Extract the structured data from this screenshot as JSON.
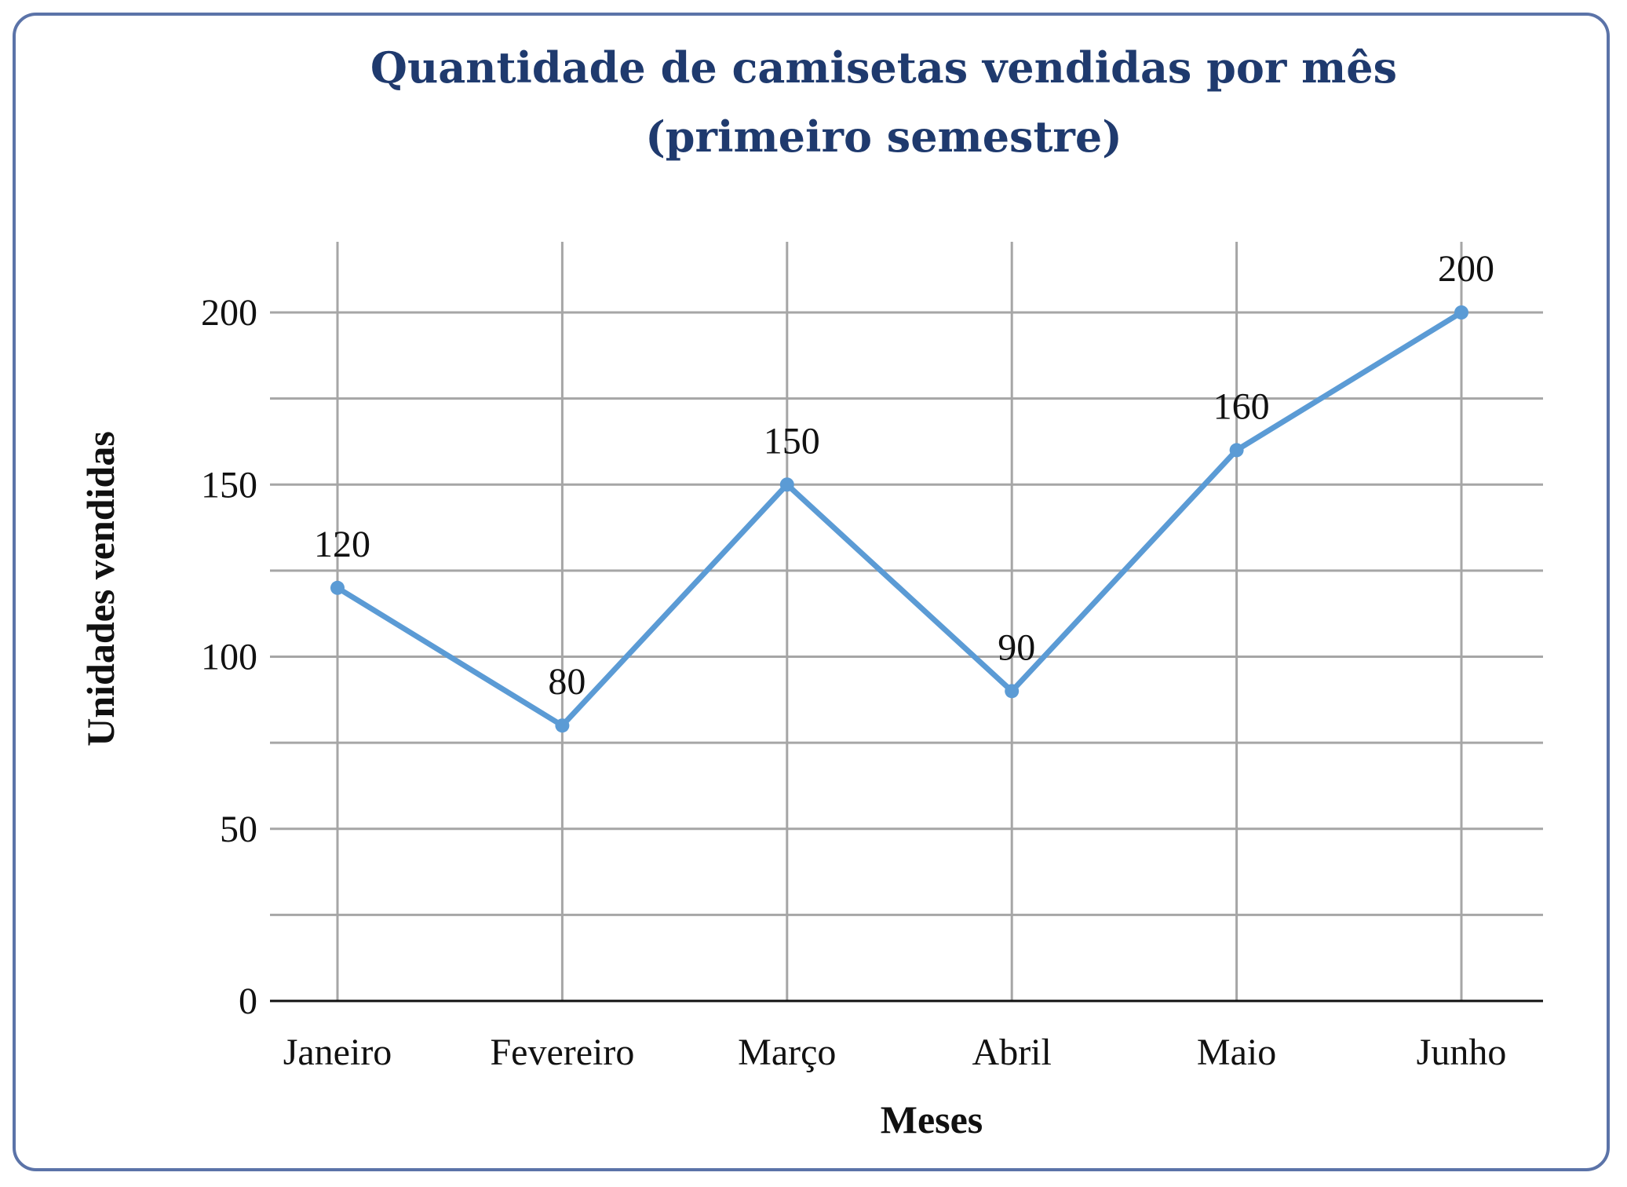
{
  "chart_data": {
    "type": "line",
    "title": [
      "Quantidade de camisetas vendidas por mês",
      "(primeiro semestre)"
    ],
    "xlabel": "Meses",
    "ylabel": "Unidades vendidas",
    "categories": [
      "Janeiro",
      "Fevereiro",
      "Março",
      "Abril",
      "Maio",
      "Junho"
    ],
    "series": [
      {
        "values": [
          120,
          80,
          150,
          90,
          160,
          200
        ]
      }
    ],
    "ylim": [
      0,
      200
    ],
    "yticks": [
      0,
      50,
      100,
      150,
      200
    ],
    "minor_gridlines": [
      25,
      75,
      125,
      175
    ],
    "grid": true,
    "legend": "none",
    "colors": {
      "line": "#5b9bd5",
      "grid": "#a6a6a6",
      "title": "#1f3a6e",
      "frame": "#5b73a8"
    }
  }
}
